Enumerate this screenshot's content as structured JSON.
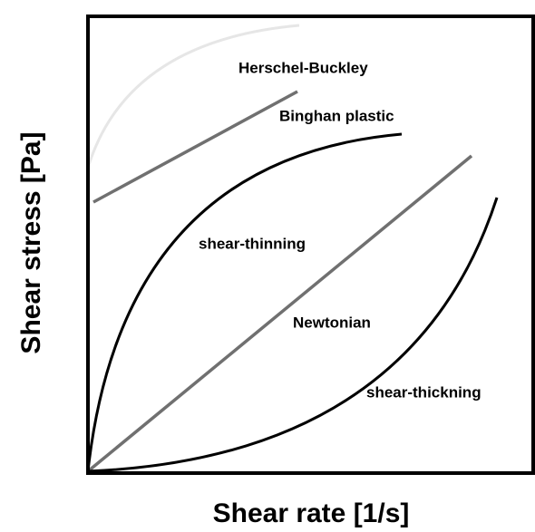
{
  "x_label": "Shear rate [1/s]",
  "y_label": "Shear stress [Pa]",
  "curves": [
    {
      "label": "Herschel-Buckley"
    },
    {
      "label": "Binghan plastic"
    },
    {
      "label": "shear-thinning"
    },
    {
      "label": "Newtonian"
    },
    {
      "label": "shear-thickning"
    }
  ]
}
